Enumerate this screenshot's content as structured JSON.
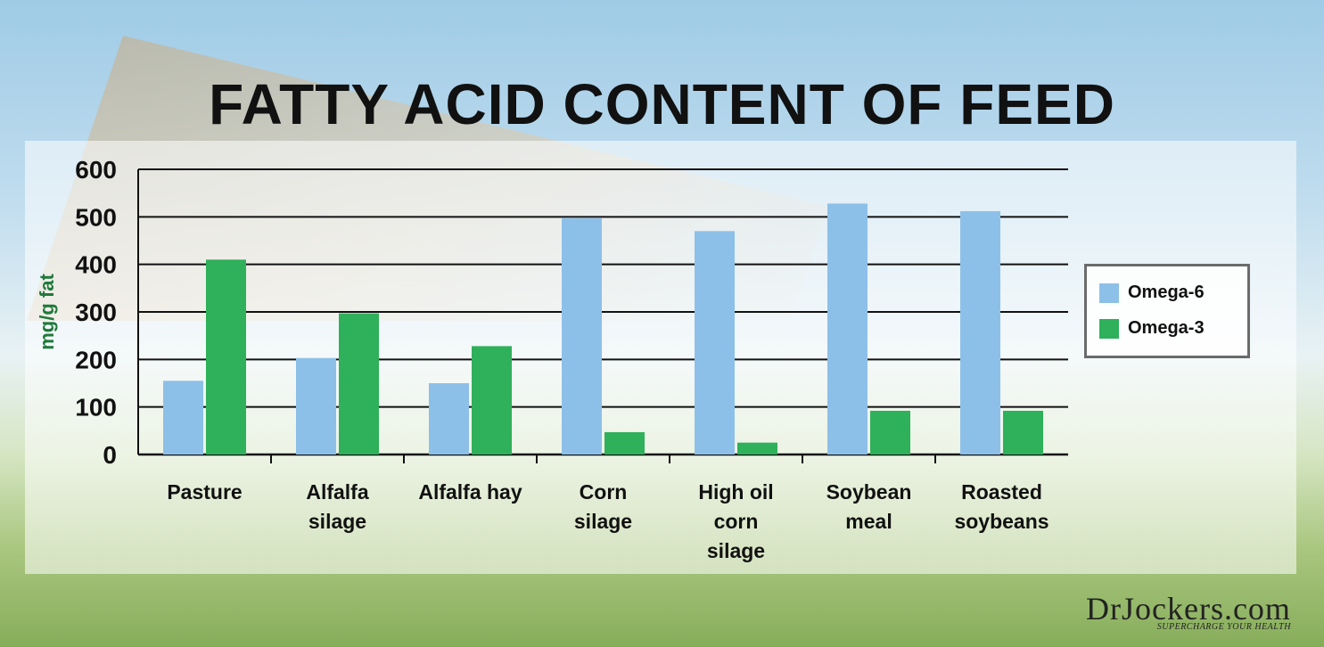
{
  "logo": {
    "name": "DrJockers.com",
    "tagline": "SUPERCHARGE YOUR HEALTH"
  },
  "chart_data": {
    "type": "bar",
    "title": "FATTY ACID CONTENT OF FEED",
    "ylabel": "mg/g fat",
    "ylim": [
      0,
      600
    ],
    "yticks": [
      0,
      100,
      200,
      300,
      400,
      500,
      600
    ],
    "grid": true,
    "legend": "right",
    "categories": [
      [
        "Pasture"
      ],
      [
        "Alfalfa",
        "silage"
      ],
      [
        "Alfalfa hay"
      ],
      [
        "Corn",
        "silage"
      ],
      [
        "High oil",
        "corn",
        "silage"
      ],
      [
        "Soybean",
        "meal"
      ],
      [
        "Roasted",
        "soybeans"
      ]
    ],
    "series": [
      {
        "name": "Omega-6",
        "color": "#8dc0e8",
        "values": [
          155,
          203,
          150,
          497,
          470,
          528,
          512
        ]
      },
      {
        "name": "Omega-3",
        "color": "#2fb05a",
        "values": [
          410,
          297,
          228,
          47,
          25,
          92,
          92
        ]
      }
    ]
  }
}
